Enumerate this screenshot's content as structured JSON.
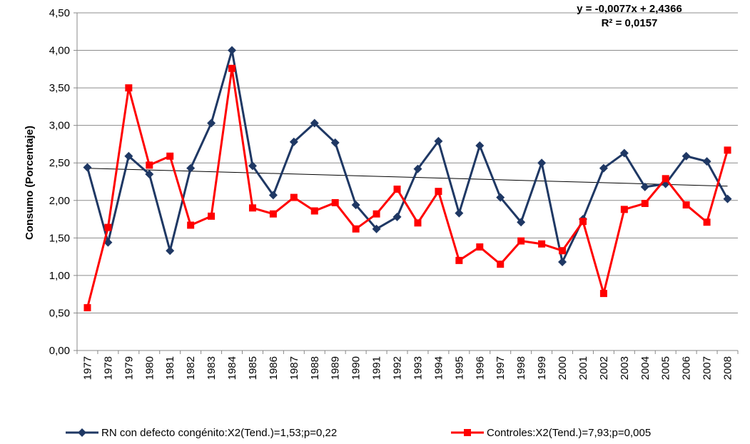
{
  "chart_data": {
    "type": "line",
    "title": "",
    "xlabel": "",
    "ylabel": "Consumo (Porcentaje)",
    "ylim": [
      0,
      4.5
    ],
    "ytick_step": 0.5,
    "ytick_labels": [
      "0,00",
      "0,50",
      "1,00",
      "1,50",
      "2,00",
      "2,50",
      "3,00",
      "3,50",
      "4,00",
      "4,50"
    ],
    "grid": "horizontal",
    "legend_position": "bottom",
    "categories": [
      "1977",
      "1978",
      "1979",
      "1980",
      "1981",
      "1982",
      "1983",
      "1984",
      "1985",
      "1986",
      "1987",
      "1988",
      "1989",
      "1990",
      "1991",
      "1992",
      "1993",
      "1994",
      "1995",
      "1996",
      "1997",
      "1998",
      "1999",
      "2000",
      "2001",
      "2002",
      "2003",
      "2004",
      "2005",
      "2006",
      "2007",
      "2008"
    ],
    "series": [
      {
        "name": "RN con defecto congénito:X2(Tend.)=1,53;p=0,22",
        "color": "#1f3864",
        "marker": "diamond",
        "values": [
          2.44,
          1.44,
          2.59,
          2.35,
          1.33,
          2.43,
          3.03,
          4.0,
          2.46,
          2.07,
          2.78,
          3.03,
          2.77,
          1.94,
          1.62,
          1.78,
          2.42,
          2.79,
          1.83,
          2.73,
          2.04,
          1.71,
          2.5,
          1.18,
          1.75,
          2.43,
          2.63,
          2.18,
          2.22,
          2.59,
          2.52,
          2.02
        ]
      },
      {
        "name": "Controles:X2(Tend.)=7,93;p=0,005",
        "color": "#ff0000",
        "marker": "square",
        "values": [
          0.57,
          1.64,
          3.5,
          2.47,
          2.59,
          1.67,
          1.79,
          3.76,
          1.9,
          1.82,
          2.04,
          1.86,
          1.97,
          1.62,
          1.82,
          2.15,
          1.7,
          2.12,
          1.2,
          1.38,
          1.15,
          1.46,
          1.42,
          1.33,
          1.72,
          0.76,
          1.88,
          1.96,
          2.29,
          1.94,
          1.71,
          2.67
        ]
      }
    ],
    "trendline": {
      "equation": "y = -0,0077x + 2,4366",
      "r_squared": "R² = 0,0157",
      "slope": -0.0077,
      "intercept": 2.4366,
      "color": "#000000"
    }
  }
}
